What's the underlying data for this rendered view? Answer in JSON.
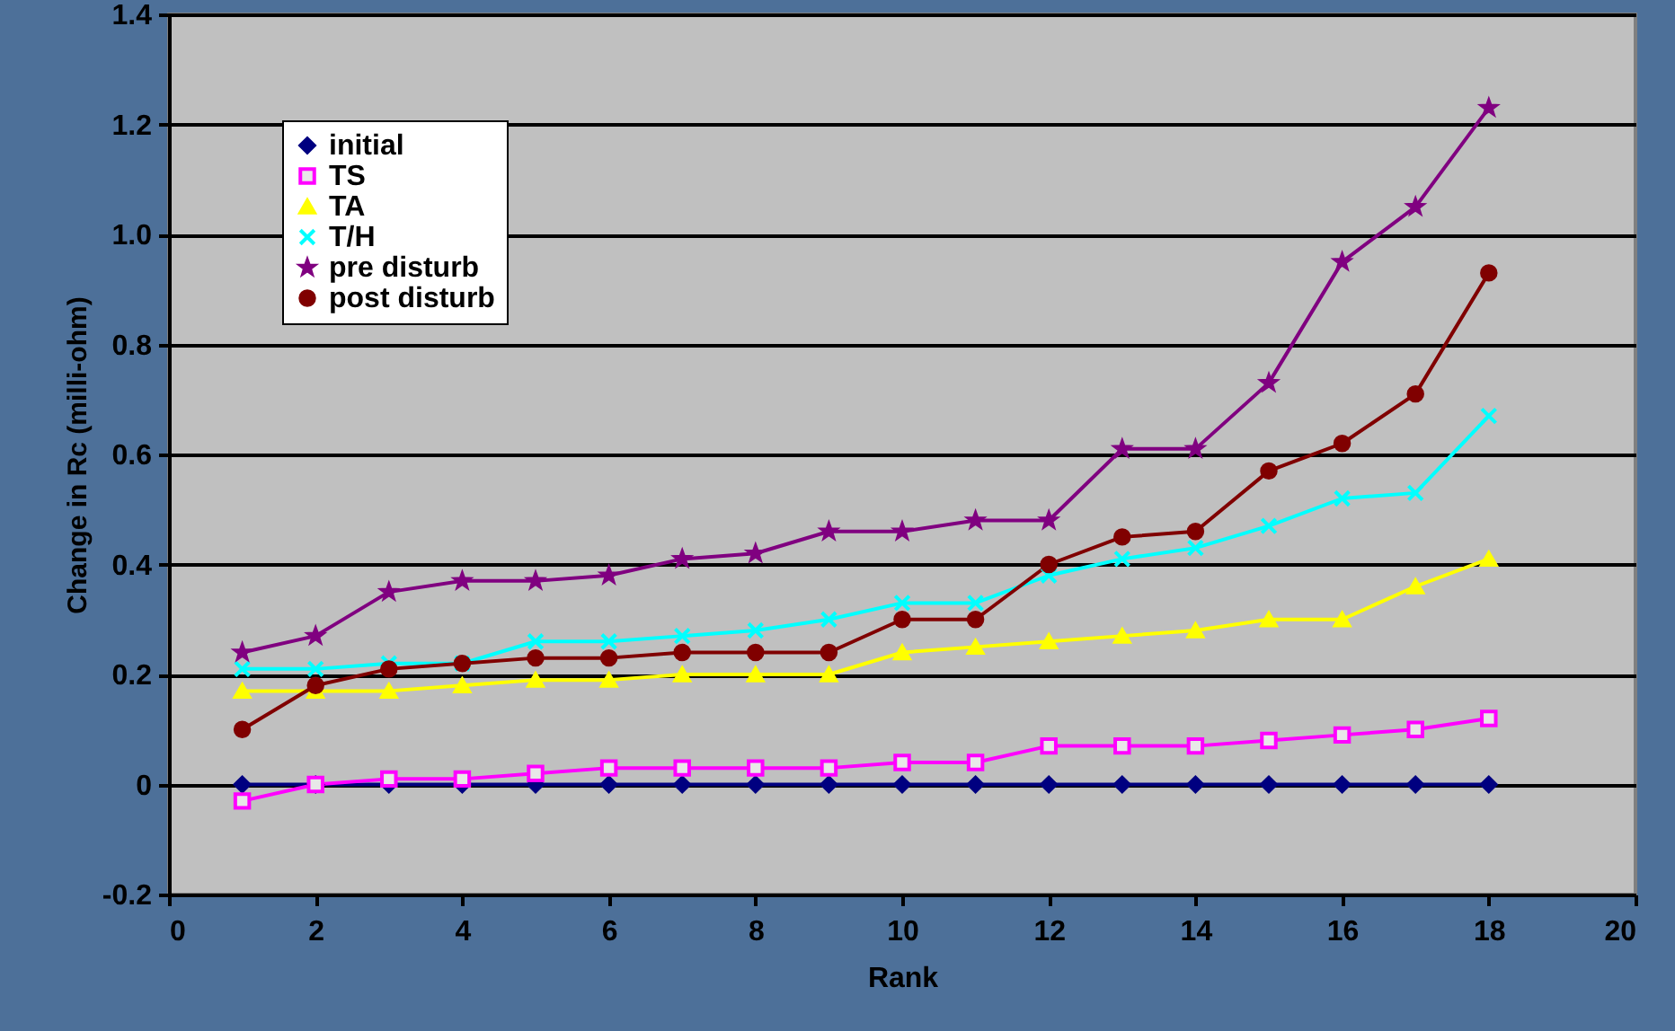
{
  "chart_data": {
    "type": "line",
    "xlabel": "Rank",
    "ylabel": "Change in Rc (milli-ohm)",
    "x": [
      1,
      2,
      3,
      4,
      5,
      6,
      7,
      8,
      9,
      10,
      11,
      12,
      13,
      14,
      15,
      16,
      17,
      18
    ],
    "xlim": [
      0,
      20
    ],
    "xticks": [
      0,
      2,
      4,
      6,
      8,
      10,
      12,
      14,
      16,
      18,
      20
    ],
    "ylim": [
      -0.2,
      1.4
    ],
    "yticks": [
      {
        "value": -0.2,
        "label": "-0.2"
      },
      0,
      {
        "value": 0.2,
        "label": "0.2"
      },
      {
        "value": 0.4,
        "label": "0.4"
      },
      {
        "value": 0.6,
        "label": "0.6"
      },
      {
        "value": 0.8,
        "label": "0.8"
      },
      {
        "value": 1,
        "label": "1.0"
      },
      {
        "value": 1.2,
        "label": "1.2"
      },
      {
        "value": 1.4,
        "label": "1.4"
      }
    ],
    "grid": "y",
    "legend": "top left",
    "line_style": "solid",
    "series": [
      {
        "name": "initial",
        "color": "#000080",
        "marker": "diamond",
        "values": [
          0,
          0,
          0,
          0,
          0,
          0,
          0,
          0,
          0,
          0,
          0,
          0,
          0,
          0,
          0,
          0,
          0,
          0
        ]
      },
      {
        "name": "TS",
        "color": "#ff00ff",
        "marker": "square",
        "values": [
          -0.03,
          0,
          0.01,
          0.01,
          0.02,
          0.03,
          0.03,
          0.03,
          0.03,
          0.04,
          0.04,
          0.07,
          0.07,
          0.07,
          0.08,
          0.09,
          0.1,
          0.12
        ]
      },
      {
        "name": "TA",
        "color": "#ffff00",
        "marker": "triangle",
        "values": [
          0.17,
          0.17,
          0.17,
          0.18,
          0.19,
          0.19,
          0.2,
          0.2,
          0.2,
          0.24,
          0.25,
          0.26,
          0.27,
          0.28,
          0.3,
          0.3,
          0.36,
          0.41
        ]
      },
      {
        "name": "T/H",
        "color": "#00ffff",
        "marker": "cross",
        "values": [
          0.21,
          0.21,
          0.22,
          0.22,
          0.26,
          0.26,
          0.27,
          0.28,
          0.3,
          0.33,
          0.33,
          0.38,
          0.41,
          0.43,
          0.47,
          0.52,
          0.53,
          0.67
        ]
      },
      {
        "name": "pre disturb",
        "color": "#800080",
        "marker": "star",
        "values": [
          0.24,
          0.27,
          0.35,
          0.37,
          0.37,
          0.38,
          0.41,
          0.42,
          0.46,
          0.46,
          0.48,
          0.48,
          0.61,
          0.61,
          0.73,
          0.95,
          1.05,
          1.23
        ]
      },
      {
        "name": "post disturb",
        "color": "#800000",
        "marker": "circle",
        "values": [
          0.1,
          0.18,
          0.21,
          0.22,
          0.23,
          0.23,
          0.24,
          0.24,
          0.24,
          0.3,
          0.3,
          0.4,
          0.45,
          0.46,
          0.57,
          0.62,
          0.71,
          0.93
        ]
      }
    ]
  }
}
